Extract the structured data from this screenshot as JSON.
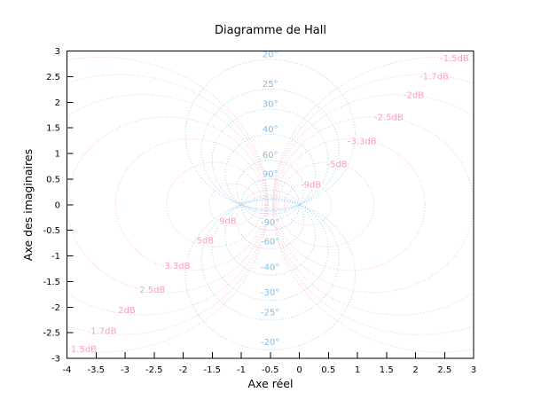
{
  "chart_data": {
    "type": "line",
    "variant": "hall-chart-contours",
    "title": "Diagramme de Hall",
    "xlabel": "Axe réel",
    "ylabel": "Axe des imaginaires",
    "xlim": [
      -4,
      3
    ],
    "ylim": [
      -3,
      3
    ],
    "grid": false,
    "legend": "none",
    "line_style": "dotted",
    "x_ticks": [
      "-4",
      "-3.5",
      "-3",
      "-2.5",
      "-2",
      "-1.5",
      "-1",
      "-0.5",
      "0",
      "0.5",
      "1",
      "1.5",
      "2",
      "2.5",
      "3"
    ],
    "y_ticks": [
      "3",
      "2.5",
      "2",
      "1.5",
      "1",
      "0.5",
      "0",
      "-0.5",
      "-1",
      "-1.5",
      "-2",
      "-2.5",
      "-3"
    ],
    "magnitude_circles_dB": {
      "curve_color": "#ffbcca",
      "label_color": "#ff9db5",
      "unit": "dB",
      "items": [
        {
          "db": -1.5,
          "label": "-1.5dB",
          "label_pos": [
            2.67,
            2.86
          ]
        },
        {
          "db": -1.7,
          "label": "-1.7dB",
          "label_pos": [
            2.32,
            2.51
          ]
        },
        {
          "db": -2.0,
          "label": "-2dB",
          "label_pos": [
            1.97,
            2.14
          ]
        },
        {
          "db": -2.5,
          "label": "-2.5dB",
          "label_pos": [
            1.54,
            1.71
          ]
        },
        {
          "db": -3.3,
          "label": "-3.3dB",
          "label_pos": [
            1.08,
            1.24
          ]
        },
        {
          "db": -5.0,
          "label": "-5dB",
          "label_pos": [
            0.65,
            0.79
          ]
        },
        {
          "db": -9.0,
          "label": "-9dB",
          "label_pos": [
            0.2,
            0.39
          ]
        },
        {
          "db": 9.0,
          "label": "9dB",
          "label_pos": [
            -1.23,
            -0.32
          ]
        },
        {
          "db": 5.0,
          "label": "5dB",
          "label_pos": [
            -1.62,
            -0.7
          ]
        },
        {
          "db": 3.3,
          "label": "3.3dB",
          "label_pos": [
            -2.1,
            -1.19
          ]
        },
        {
          "db": 2.5,
          "label": "2.5dB",
          "label_pos": [
            -2.53,
            -1.66
          ]
        },
        {
          "db": 2.0,
          "label": "2dB",
          "label_pos": [
            -2.97,
            -2.06
          ]
        },
        {
          "db": 1.7,
          "label": "1.7dB",
          "label_pos": [
            -3.37,
            -2.46
          ]
        },
        {
          "db": 1.5,
          "label": "1.5dB",
          "label_pos": [
            -3.71,
            -2.82
          ]
        }
      ]
    },
    "phase_circles_deg": {
      "curve_color": "#a9d2f2",
      "label_color": "#84bce9",
      "unit": "deg",
      "items": [
        {
          "deg": 20,
          "label": "20°"
        },
        {
          "deg": 25,
          "label": "25°"
        },
        {
          "deg": 30,
          "label": "30°"
        },
        {
          "deg": 40,
          "label": "40°"
        },
        {
          "deg": 60,
          "label": "60°"
        },
        {
          "deg": 90,
          "label": "90°"
        },
        {
          "deg": -90,
          "label": "-90°"
        },
        {
          "deg": -60,
          "label": "-60°"
        },
        {
          "deg": -40,
          "label": "-40°"
        },
        {
          "deg": -30,
          "label": "-30°"
        },
        {
          "deg": -25,
          "label": "-25°"
        },
        {
          "deg": -20,
          "label": "-20°"
        }
      ]
    }
  }
}
